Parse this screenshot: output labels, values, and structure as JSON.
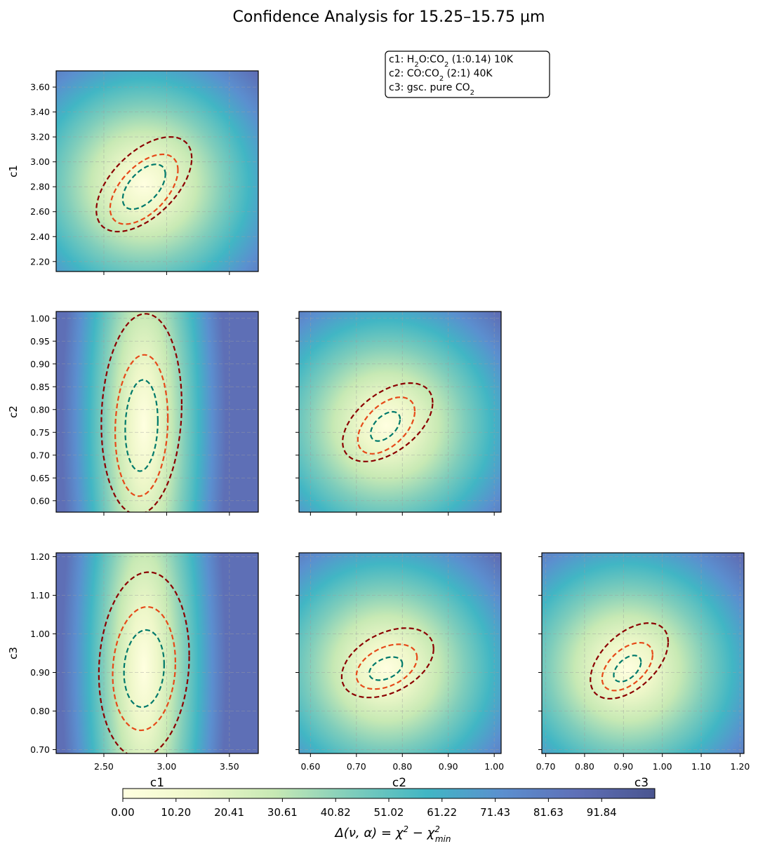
{
  "chart_data": {
    "type": "heatmap",
    "title": "Confidence Analysis for 15.25–15.75 µm",
    "parameters": [
      {
        "name": "c1",
        "lim": [
          2.12,
          3.73
        ],
        "ticks": [
          2.2,
          2.4,
          2.6,
          2.8,
          3.0,
          3.2,
          3.4,
          3.6
        ],
        "xticks": [
          2.5,
          3.0,
          3.5
        ],
        "best": 2.82
      },
      {
        "name": "c2",
        "lim": [
          0.575,
          1.015
        ],
        "ticks": [
          0.6,
          0.65,
          0.7,
          0.75,
          0.8,
          0.85,
          0.9,
          0.95,
          1.0
        ],
        "xticks": [
          0.6,
          0.7,
          0.8,
          0.9,
          1.0
        ],
        "best": 0.765
      },
      {
        "name": "c3",
        "lim": [
          0.69,
          1.21
        ],
        "ticks": [
          0.7,
          0.8,
          0.9,
          1.0,
          1.1,
          1.2
        ],
        "xticks": [
          0.7,
          0.8,
          0.9,
          1.0,
          1.1,
          1.2
        ],
        "best": 0.91
      }
    ],
    "panels": [
      {
        "row": 0,
        "col": 0,
        "label": "c1 vs c1",
        "contours": [
          {
            "level": "inner",
            "color": "#00796b",
            "cx": 2.82,
            "cy": 2.8,
            "rx": 0.17,
            "ry": 0.18,
            "tilt": 0.55
          },
          {
            "level": "middle",
            "color": "#e64a19",
            "cx": 2.82,
            "cy": 2.78,
            "rx": 0.27,
            "ry": 0.28,
            "tilt": 0.55
          },
          {
            "level": "outer",
            "color": "#8b0000",
            "cx": 2.82,
            "cy": 2.82,
            "rx": 0.38,
            "ry": 0.38,
            "tilt": 0.55
          }
        ]
      },
      {
        "row": 1,
        "col": 0,
        "label": "c1 vs c2",
        "contours": [
          {
            "level": "inner",
            "color": "#00796b",
            "cx": 2.8,
            "cy": 0.765,
            "rx": 0.13,
            "ry": 0.1,
            "tilt": 0.1
          },
          {
            "level": "middle",
            "color": "#e64a19",
            "cx": 2.8,
            "cy": 0.765,
            "rx": 0.21,
            "ry": 0.155,
            "tilt": 0.1
          },
          {
            "level": "outer",
            "color": "#8b0000",
            "cx": 2.8,
            "cy": 0.79,
            "rx": 0.32,
            "ry": 0.22,
            "tilt": 0.1
          }
        ]
      },
      {
        "row": 1,
        "col": 1,
        "label": "c2 vs c2",
        "contours": [
          {
            "level": "inner",
            "color": "#00796b",
            "cx": 0.763,
            "cy": 0.763,
            "rx": 0.032,
            "ry": 0.032,
            "tilt": 0.5
          },
          {
            "level": "middle",
            "color": "#e64a19",
            "cx": 0.765,
            "cy": 0.765,
            "rx": 0.062,
            "ry": 0.062,
            "tilt": 0.5
          },
          {
            "level": "outer",
            "color": "#8b0000",
            "cx": 0.768,
            "cy": 0.772,
            "rx": 0.098,
            "ry": 0.086,
            "tilt": 0.5
          }
        ]
      },
      {
        "row": 2,
        "col": 0,
        "label": "c1 vs c3",
        "contours": [
          {
            "level": "inner",
            "color": "#00796b",
            "cx": 2.82,
            "cy": 0.91,
            "rx": 0.16,
            "ry": 0.1,
            "tilt": 0.1
          },
          {
            "level": "middle",
            "color": "#e64a19",
            "cx": 2.82,
            "cy": 0.91,
            "rx": 0.25,
            "ry": 0.16,
            "tilt": 0.1
          },
          {
            "level": "outer",
            "color": "#8b0000",
            "cx": 2.82,
            "cy": 0.92,
            "rx": 0.36,
            "ry": 0.24,
            "tilt": 0.1
          }
        ]
      },
      {
        "row": 2,
        "col": 1,
        "label": "c2 vs c3",
        "contours": [
          {
            "level": "inner",
            "color": "#00796b",
            "cx": 0.764,
            "cy": 0.91,
            "rx": 0.036,
            "ry": 0.03,
            "tilt": 0.4
          },
          {
            "level": "middle",
            "color": "#e64a19",
            "cx": 0.766,
            "cy": 0.915,
            "rx": 0.066,
            "ry": 0.058,
            "tilt": 0.4
          },
          {
            "level": "outer",
            "color": "#8b0000",
            "cx": 0.768,
            "cy": 0.925,
            "rx": 0.1,
            "ry": 0.09,
            "tilt": 0.4
          }
        ]
      },
      {
        "row": 2,
        "col": 2,
        "label": "c3 vs c3",
        "contours": [
          {
            "level": "inner",
            "color": "#00796b",
            "cx": 0.91,
            "cy": 0.91,
            "rx": 0.035,
            "ry": 0.034,
            "tilt": 0.5
          },
          {
            "level": "middle",
            "color": "#e64a19",
            "cx": 0.91,
            "cy": 0.915,
            "rx": 0.065,
            "ry": 0.062,
            "tilt": 0.5
          },
          {
            "level": "outer",
            "color": "#8b0000",
            "cx": 0.915,
            "cy": 0.93,
            "rx": 0.1,
            "ry": 0.098,
            "tilt": 0.5
          }
        ]
      }
    ],
    "legend_box": {
      "placement": "top-center",
      "lines": [
        {
          "text": "c1: H2O:CO2 (1:0.14) 10K"
        },
        {
          "text": "c2: CO:CO2 (2:1) 40K"
        },
        {
          "text": "c3: gsc. pure CO2"
        }
      ]
    },
    "colorbar": {
      "label": "Δ(ν, α) = χ² − χ²min",
      "range": [
        0,
        102.04
      ],
      "ticks": [
        "0.00",
        "10.20",
        "20.41",
        "30.61",
        "40.82",
        "51.02",
        "61.22",
        "71.43",
        "81.63",
        "91.84"
      ],
      "colors": [
        "#ffffe0",
        "#eef7c9",
        "#c7e9b4",
        "#7fcdbb",
        "#41b6c4",
        "#5b8fcf",
        "#5e6fb6",
        "#4a5590"
      ]
    },
    "grid": true,
    "contour_style": "dashed"
  }
}
